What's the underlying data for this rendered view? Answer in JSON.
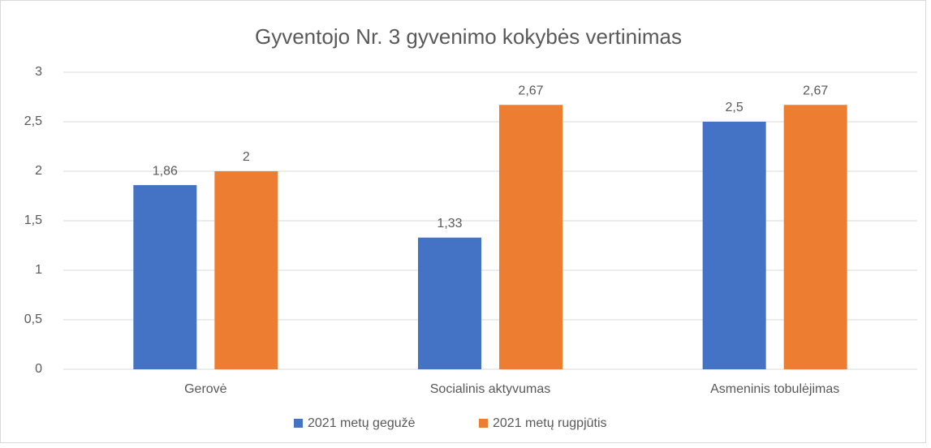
{
  "chart_data": {
    "type": "bar",
    "title": "Gyventojo Nr. 3 gyvenimo kokybės vertinimas",
    "categories": [
      "Gerovė",
      "Socialinis aktyvumas",
      "Asmeninis tobulėjimas"
    ],
    "series": [
      {
        "name": "2021 metų gegužė",
        "color": "#4472c4",
        "values": [
          1.86,
          1.33,
          2.5
        ],
        "value_labels": [
          "1,86",
          "1,33",
          "2,5"
        ]
      },
      {
        "name": "2021 metų rugpjūtis",
        "color": "#ed7d31",
        "values": [
          2,
          2.67,
          2.67
        ],
        "value_labels": [
          "2",
          "2,67",
          "2,67"
        ]
      }
    ],
    "ylim": [
      0,
      3
    ],
    "yticks": [
      0,
      {
        "value": 0.5,
        "label": "0,5"
      },
      1,
      {
        "value": 1.5,
        "label": "1,5"
      },
      2,
      {
        "value": 2.5,
        "label": "2,5"
      },
      3
    ],
    "grid": true,
    "legend": "bottom"
  }
}
